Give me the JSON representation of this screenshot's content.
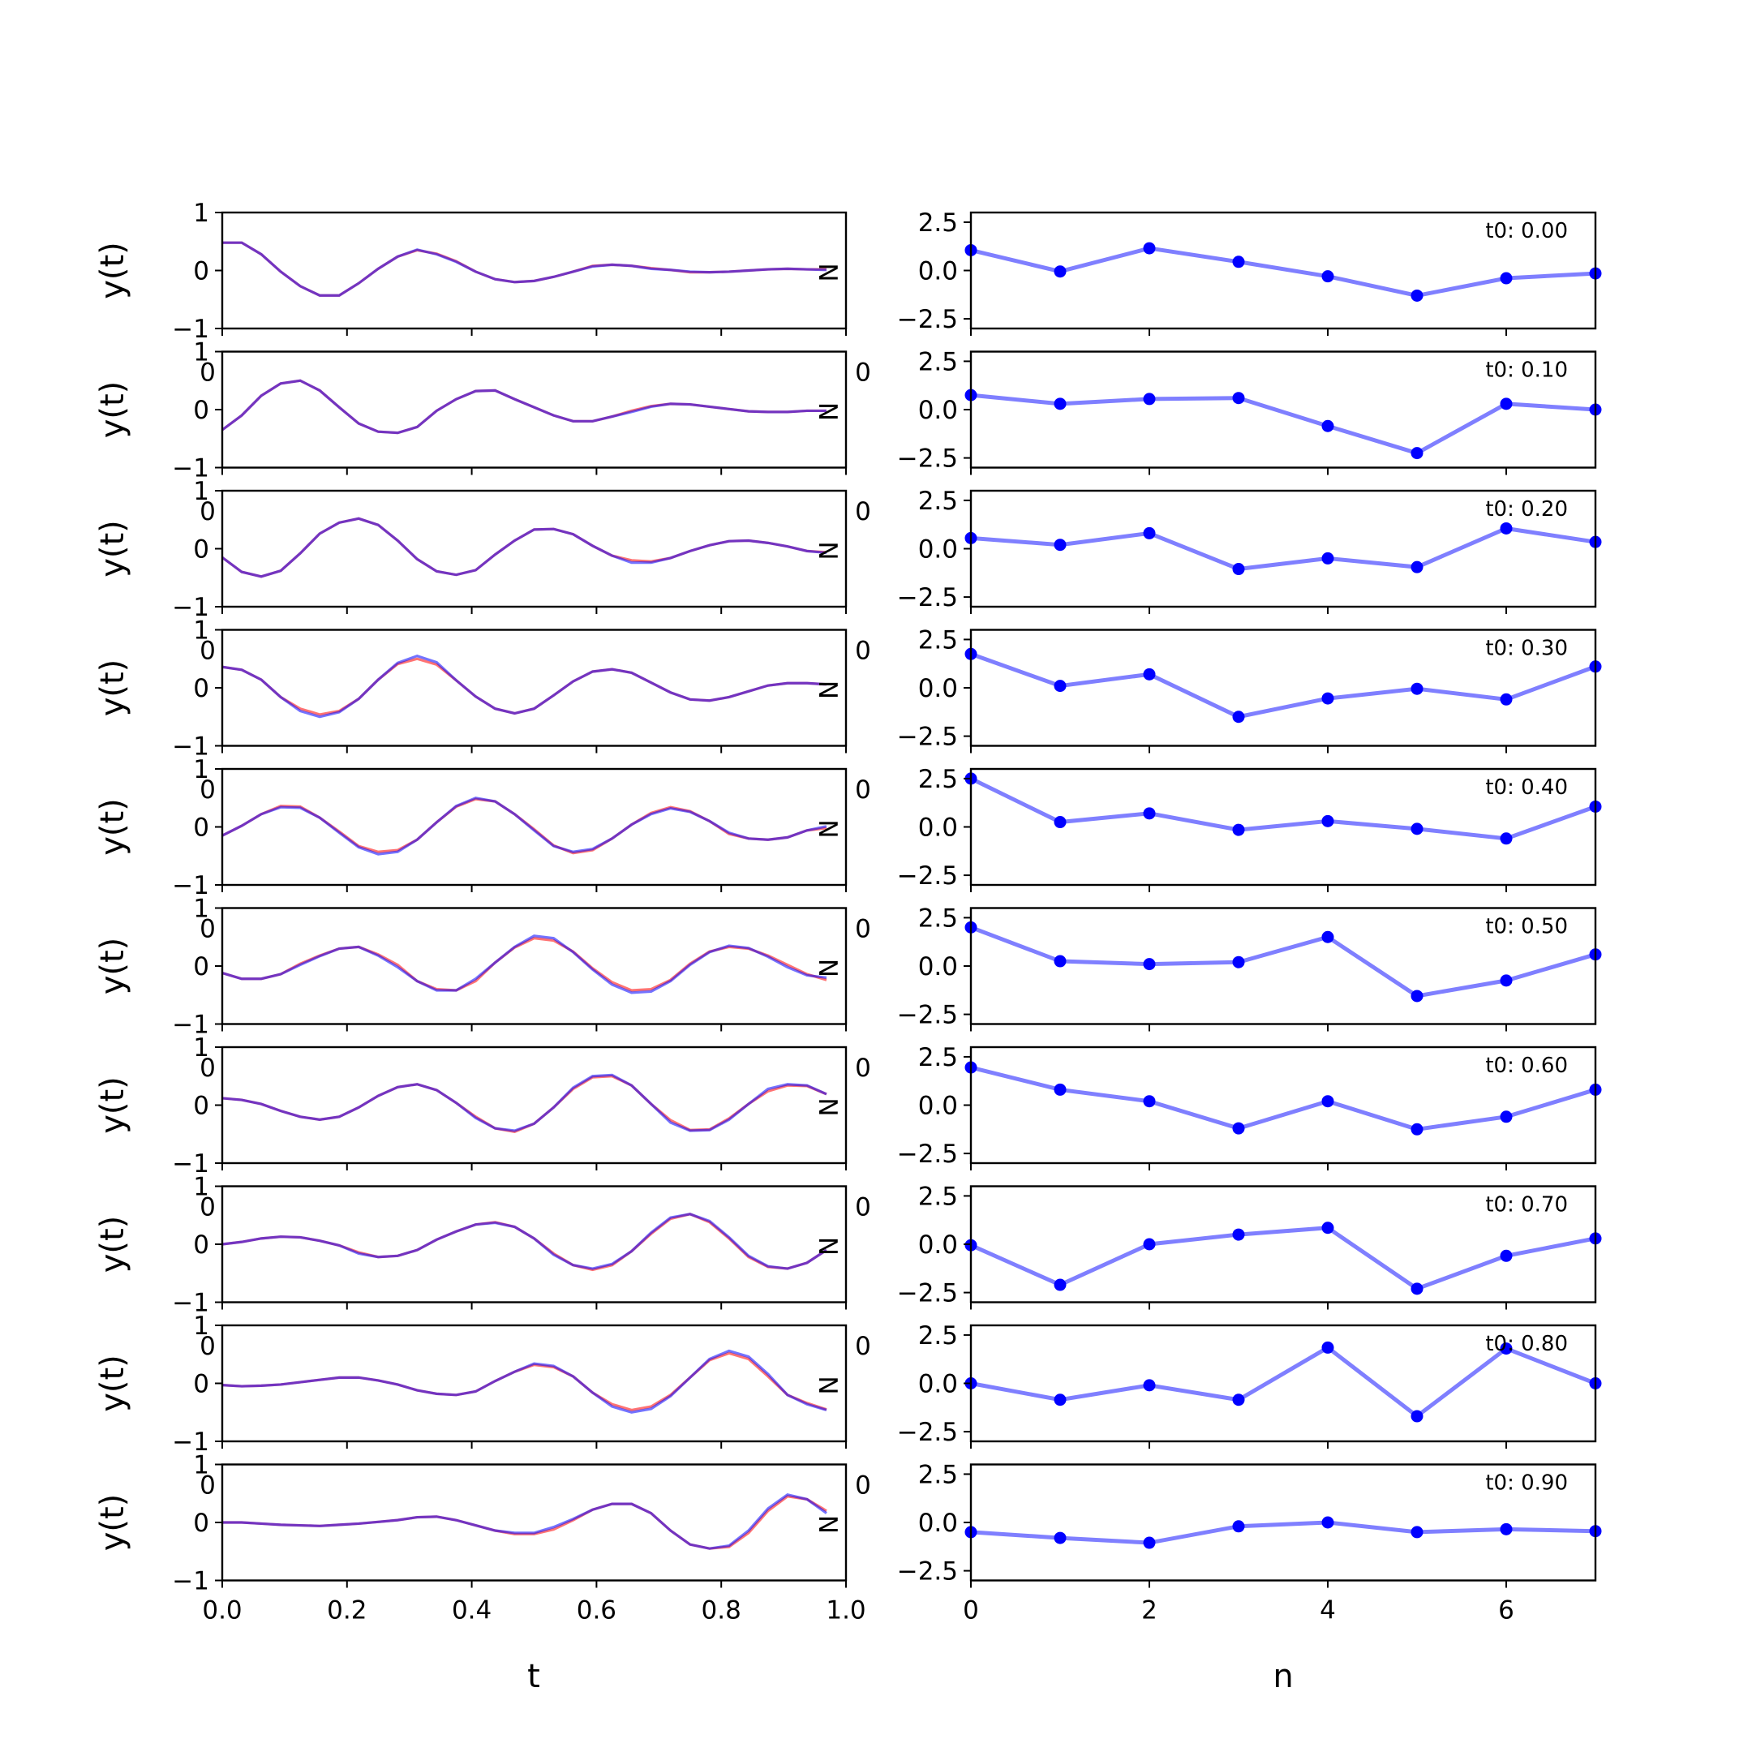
{
  "chart_data": [
    {
      "type": "line",
      "panel": "left",
      "xlabel": "t",
      "ylabel": "y(t)",
      "xlim": [
        0,
        1
      ],
      "ylim": [
        -1,
        1
      ],
      "x_ticks": [
        "0.0",
        "0.2",
        "0.4",
        "0.6",
        "0.8",
        "1.0"
      ],
      "y_ticks": [
        "1",
        "0",
        "−1"
      ],
      "stray_y_label": "N",
      "stray_x_label": "0",
      "x": [
        0.0,
        0.03125,
        0.0625,
        0.09375,
        0.125,
        0.15625,
        0.1875,
        0.21875,
        0.25,
        0.28125,
        0.3125,
        0.34375,
        0.375,
        0.40625,
        0.4375,
        0.46875,
        0.5,
        0.53125,
        0.5625,
        0.59375,
        0.625,
        0.65625,
        0.6875,
        0.71875,
        0.75,
        0.78125,
        0.8125,
        0.84375,
        0.875,
        0.90625,
        0.9375,
        0.96875
      ],
      "colors": {
        "true": "#ff0000",
        "predicted": "#0000ff",
        "blend": "#7a0090"
      },
      "rows": [
        {
          "true": [
            0.48,
            0.48,
            0.28,
            -0.02,
            -0.27,
            -0.43,
            -0.43,
            -0.22,
            0.03,
            0.24,
            0.35,
            0.29,
            0.16,
            -0.02,
            -0.15,
            -0.2,
            -0.18,
            -0.11,
            -0.02,
            0.08,
            0.1,
            0.08,
            0.04,
            0.01,
            -0.03,
            -0.03,
            -0.02,
            0.0,
            0.02,
            0.03,
            0.02,
            0.02
          ],
          "pred": [
            0.48,
            0.48,
            0.28,
            -0.02,
            -0.27,
            -0.43,
            -0.43,
            -0.22,
            0.03,
            0.24,
            0.36,
            0.28,
            0.15,
            -0.02,
            -0.15,
            -0.2,
            -0.18,
            -0.11,
            -0.02,
            0.07,
            0.1,
            0.08,
            0.03,
            0.01,
            -0.02,
            -0.03,
            -0.02,
            0.0,
            0.02,
            0.03,
            0.02,
            0.01
          ]
        },
        {
          "true": [
            -0.35,
            -0.1,
            0.24,
            0.45,
            0.5,
            0.33,
            0.04,
            -0.24,
            -0.38,
            -0.4,
            -0.3,
            -0.02,
            0.18,
            0.32,
            0.33,
            0.18,
            0.04,
            -0.1,
            -0.2,
            -0.2,
            -0.12,
            -0.02,
            0.06,
            0.1,
            0.09,
            0.05,
            0.01,
            -0.03,
            -0.04,
            -0.04,
            -0.02,
            -0.02
          ],
          "pred": [
            -0.35,
            -0.1,
            0.24,
            0.45,
            0.5,
            0.33,
            0.04,
            -0.24,
            -0.38,
            -0.4,
            -0.3,
            -0.02,
            0.18,
            0.32,
            0.33,
            0.18,
            0.04,
            -0.1,
            -0.2,
            -0.2,
            -0.12,
            -0.04,
            0.05,
            0.1,
            0.09,
            0.05,
            0.01,
            -0.03,
            -0.04,
            -0.04,
            -0.02,
            -0.02
          ]
        },
        {
          "true": [
            -0.15,
            -0.4,
            -0.48,
            -0.38,
            -0.08,
            0.26,
            0.45,
            0.52,
            0.41,
            0.14,
            -0.18,
            -0.39,
            -0.45,
            -0.37,
            -0.1,
            0.14,
            0.33,
            0.34,
            0.25,
            0.05,
            -0.12,
            -0.2,
            -0.22,
            -0.16,
            -0.04,
            0.06,
            0.13,
            0.14,
            0.1,
            0.04,
            -0.04,
            -0.06
          ],
          "pred": [
            -0.15,
            -0.4,
            -0.48,
            -0.38,
            -0.08,
            0.26,
            0.45,
            0.52,
            0.41,
            0.14,
            -0.18,
            -0.39,
            -0.45,
            -0.37,
            -0.1,
            0.14,
            0.33,
            0.34,
            0.25,
            0.05,
            -0.12,
            -0.24,
            -0.24,
            -0.16,
            -0.04,
            0.06,
            0.13,
            0.14,
            0.1,
            0.04,
            -0.04,
            -0.07
          ]
        },
        {
          "true": [
            0.36,
            0.31,
            0.14,
            -0.16,
            -0.36,
            -0.46,
            -0.4,
            -0.19,
            0.14,
            0.41,
            0.5,
            0.4,
            0.13,
            -0.15,
            -0.36,
            -0.44,
            -0.36,
            -0.13,
            0.11,
            0.28,
            0.32,
            0.26,
            0.09,
            -0.08,
            -0.2,
            -0.22,
            -0.16,
            -0.06,
            0.04,
            0.08,
            0.08,
            0.06
          ],
          "pred": [
            0.36,
            0.31,
            0.14,
            -0.16,
            -0.4,
            -0.5,
            -0.42,
            -0.19,
            0.14,
            0.43,
            0.55,
            0.44,
            0.13,
            -0.15,
            -0.36,
            -0.44,
            -0.36,
            -0.13,
            0.11,
            0.28,
            0.32,
            0.26,
            0.09,
            -0.08,
            -0.2,
            -0.22,
            -0.16,
            -0.06,
            0.04,
            0.08,
            0.08,
            0.06
          ]
        },
        {
          "true": [
            -0.15,
            0.02,
            0.22,
            0.36,
            0.35,
            0.16,
            -0.08,
            -0.33,
            -0.43,
            -0.4,
            -0.22,
            0.08,
            0.35,
            0.48,
            0.44,
            0.22,
            -0.04,
            -0.32,
            -0.45,
            -0.4,
            -0.2,
            0.04,
            0.24,
            0.34,
            0.27,
            0.1,
            -0.12,
            -0.2,
            -0.22,
            -0.18,
            -0.06,
            -0.02
          ],
          "pred": [
            -0.15,
            0.02,
            0.22,
            0.34,
            0.33,
            0.16,
            -0.1,
            -0.35,
            -0.47,
            -0.43,
            -0.22,
            0.08,
            0.36,
            0.5,
            0.44,
            0.22,
            -0.06,
            -0.33,
            -0.43,
            -0.38,
            -0.2,
            0.04,
            0.22,
            0.32,
            0.26,
            0.1,
            -0.1,
            -0.2,
            -0.22,
            -0.18,
            -0.06,
            0.01
          ]
        },
        {
          "true": [
            -0.12,
            -0.22,
            -0.22,
            -0.14,
            0.04,
            0.18,
            0.3,
            0.33,
            0.2,
            0.02,
            -0.26,
            -0.4,
            -0.42,
            -0.26,
            0.06,
            0.32,
            0.48,
            0.44,
            0.25,
            -0.04,
            -0.28,
            -0.42,
            -0.4,
            -0.24,
            0.04,
            0.25,
            0.33,
            0.3,
            0.18,
            0.02,
            -0.14,
            -0.24
          ],
          "pred": [
            -0.12,
            -0.22,
            -0.22,
            -0.14,
            0.02,
            0.17,
            0.3,
            0.33,
            0.18,
            -0.02,
            -0.26,
            -0.42,
            -0.42,
            -0.22,
            0.06,
            0.33,
            0.52,
            0.48,
            0.24,
            -0.06,
            -0.32,
            -0.46,
            -0.44,
            -0.26,
            0.02,
            0.24,
            0.35,
            0.31,
            0.16,
            -0.02,
            -0.16,
            -0.2
          ]
        },
        {
          "true": [
            0.12,
            0.09,
            0.02,
            -0.1,
            -0.2,
            -0.25,
            -0.2,
            -0.04,
            0.16,
            0.31,
            0.36,
            0.26,
            0.04,
            -0.2,
            -0.4,
            -0.46,
            -0.32,
            -0.04,
            0.28,
            0.48,
            0.5,
            0.34,
            0.02,
            -0.26,
            -0.43,
            -0.42,
            -0.23,
            0.02,
            0.24,
            0.34,
            0.33,
            0.19
          ],
          "pred": [
            0.12,
            0.09,
            0.02,
            -0.1,
            -0.2,
            -0.25,
            -0.2,
            -0.04,
            0.16,
            0.31,
            0.36,
            0.26,
            0.04,
            -0.22,
            -0.4,
            -0.44,
            -0.32,
            -0.04,
            0.3,
            0.5,
            0.52,
            0.34,
            0.02,
            -0.3,
            -0.44,
            -0.43,
            -0.25,
            0.02,
            0.28,
            0.36,
            0.34,
            0.19
          ]
        },
        {
          "true": [
            0.0,
            0.04,
            0.1,
            0.13,
            0.12,
            0.06,
            -0.02,
            -0.14,
            -0.22,
            -0.2,
            -0.1,
            0.08,
            0.22,
            0.34,
            0.38,
            0.3,
            0.1,
            -0.16,
            -0.36,
            -0.44,
            -0.36,
            -0.12,
            0.18,
            0.44,
            0.52,
            0.38,
            0.1,
            -0.22,
            -0.39,
            -0.42,
            -0.32,
            -0.1
          ],
          "pred": [
            0.0,
            0.04,
            0.1,
            0.13,
            0.12,
            0.06,
            -0.02,
            -0.16,
            -0.22,
            -0.2,
            -0.1,
            0.08,
            0.22,
            0.34,
            0.37,
            0.3,
            0.1,
            -0.18,
            -0.36,
            -0.42,
            -0.34,
            -0.12,
            0.2,
            0.46,
            0.52,
            0.4,
            0.12,
            -0.2,
            -0.38,
            -0.42,
            -0.32,
            -0.1
          ]
        },
        {
          "true": [
            -0.03,
            -0.05,
            -0.04,
            -0.02,
            0.02,
            0.06,
            0.1,
            0.1,
            0.05,
            -0.02,
            -0.12,
            -0.18,
            -0.2,
            -0.14,
            0.04,
            0.2,
            0.32,
            0.28,
            0.12,
            -0.16,
            -0.36,
            -0.46,
            -0.4,
            -0.2,
            0.1,
            0.4,
            0.52,
            0.42,
            0.12,
            -0.2,
            -0.34,
            -0.45
          ],
          "pred": [
            -0.03,
            -0.05,
            -0.04,
            -0.02,
            0.02,
            0.06,
            0.1,
            0.1,
            0.05,
            -0.02,
            -0.12,
            -0.18,
            -0.2,
            -0.14,
            0.04,
            0.2,
            0.34,
            0.3,
            0.12,
            -0.16,
            -0.4,
            -0.5,
            -0.44,
            -0.22,
            0.1,
            0.42,
            0.56,
            0.46,
            0.16,
            -0.2,
            -0.36,
            -0.46
          ]
        },
        {
          "true": [
            0.0,
            0.0,
            -0.02,
            -0.04,
            -0.05,
            -0.06,
            -0.04,
            -0.02,
            0.01,
            0.04,
            0.09,
            0.1,
            0.04,
            -0.05,
            -0.14,
            -0.2,
            -0.2,
            -0.12,
            0.04,
            0.22,
            0.32,
            0.32,
            0.16,
            -0.14,
            -0.38,
            -0.45,
            -0.42,
            -0.18,
            0.2,
            0.45,
            0.4,
            0.2
          ],
          "pred": [
            0.0,
            0.0,
            -0.02,
            -0.04,
            -0.05,
            -0.06,
            -0.04,
            -0.02,
            0.01,
            0.04,
            0.09,
            0.1,
            0.04,
            -0.05,
            -0.14,
            -0.18,
            -0.18,
            -0.08,
            0.06,
            0.22,
            0.32,
            0.32,
            0.16,
            -0.14,
            -0.38,
            -0.45,
            -0.4,
            -0.14,
            0.24,
            0.48,
            0.4,
            0.16
          ]
        }
      ]
    },
    {
      "type": "line",
      "panel": "right",
      "xlabel": "n",
      "ylabel": "",
      "xlim": [
        0,
        7
      ],
      "ylim": [
        -3,
        3
      ],
      "x_ticks": [
        "0",
        "2",
        "4",
        "6"
      ],
      "y_ticks": [
        "2.5",
        "0.0",
        "−2.5"
      ],
      "color": "#0000ff",
      "x": [
        0,
        1,
        2,
        3,
        4,
        5,
        6,
        7
      ],
      "rows": [
        {
          "label": "t0: 0.00",
          "values": [
            1.05,
            -0.05,
            1.15,
            0.45,
            -0.3,
            -1.3,
            -0.4,
            -0.15
          ]
        },
        {
          "label": "t0: 0.10",
          "values": [
            0.75,
            0.3,
            0.55,
            0.6,
            -0.85,
            -2.25,
            0.3,
            0.0
          ]
        },
        {
          "label": "t0: 0.20",
          "values": [
            0.55,
            0.2,
            0.8,
            -1.05,
            -0.5,
            -0.95,
            1.05,
            0.35
          ]
        },
        {
          "label": "t0: 0.30",
          "values": [
            1.75,
            0.1,
            0.7,
            -1.5,
            -0.55,
            -0.05,
            -0.6,
            1.1
          ]
        },
        {
          "label": "t0: 0.40",
          "values": [
            2.5,
            0.25,
            0.7,
            -0.15,
            0.3,
            -0.1,
            -0.6,
            1.05
          ]
        },
        {
          "label": "t0: 0.50",
          "values": [
            2.0,
            0.25,
            0.1,
            0.2,
            1.5,
            -1.55,
            -0.75,
            0.6
          ]
        },
        {
          "label": "t0: 0.60",
          "values": [
            1.95,
            0.8,
            0.2,
            -1.2,
            0.2,
            -1.25,
            -0.6,
            0.8
          ]
        },
        {
          "label": "t0: 0.70",
          "values": [
            -0.05,
            -2.1,
            0.0,
            0.5,
            0.85,
            -2.3,
            -0.6,
            0.3
          ]
        },
        {
          "label": "t0: 0.80",
          "values": [
            0.0,
            -0.85,
            -0.1,
            -0.85,
            1.85,
            -1.7,
            1.8,
            0.0
          ]
        },
        {
          "label": "t0: 0.90",
          "values": [
            -0.5,
            -0.8,
            -1.05,
            -0.2,
            0.0,
            -0.5,
            -0.35,
            -0.45
          ]
        }
      ]
    }
  ]
}
